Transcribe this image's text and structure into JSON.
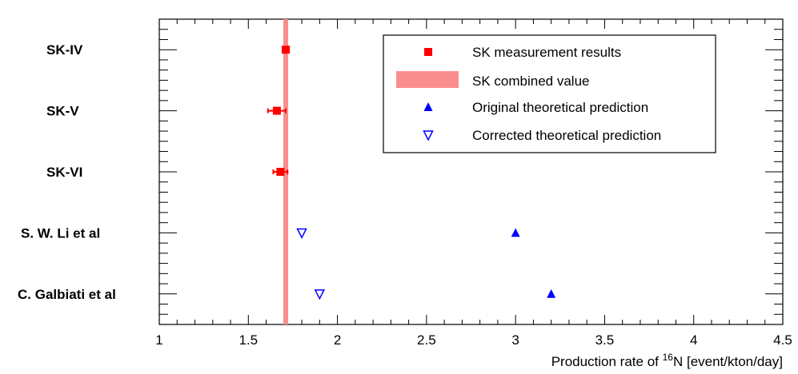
{
  "chart_data": {
    "type": "scatter",
    "title": "",
    "xlabel_prefix": "Production rate of ",
    "xlabel_sup": "16",
    "xlabel_suffix": "N [event/kton/day]",
    "xlim": [
      1,
      4.5
    ],
    "x_ticks": [
      "1",
      "1.5",
      "2",
      "2.5",
      "3",
      "3.5",
      "4",
      "4.5"
    ],
    "x_tick_values": [
      1,
      1.5,
      2,
      2.5,
      3,
      3.5,
      4,
      4.5
    ],
    "categories": [
      "SK-IV",
      "SK-V",
      "SK-VI",
      "S. W. Li et al",
      "C. Galbiati et al"
    ],
    "combined_value": {
      "name": "SK combined value",
      "value": 1.71,
      "band": [
        1.7,
        1.72
      ],
      "color": "#fa8e8e"
    },
    "series": [
      {
        "name": "SK measurement results",
        "marker": "square-filled",
        "color": "#ff0000",
        "points": [
          {
            "category": "SK-IV",
            "x": 1.71,
            "xerr": 0.01
          },
          {
            "category": "SK-V",
            "x": 1.66,
            "xerr": 0.05
          },
          {
            "category": "SK-VI",
            "x": 1.68,
            "xerr": 0.04
          }
        ]
      },
      {
        "name": "Original theoretical prediction",
        "marker": "triangle-up-filled",
        "color": "#0000ff",
        "points": [
          {
            "category": "S. W. Li et al",
            "x": 3.0
          },
          {
            "category": "C. Galbiati et al",
            "x": 3.2
          }
        ]
      },
      {
        "name": "Corrected theoretical prediction",
        "marker": "triangle-down-open",
        "color": "#0000ff",
        "points": [
          {
            "category": "S. W. Li et al",
            "x": 1.8
          },
          {
            "category": "C. Galbiati et al",
            "x": 1.9
          }
        ]
      }
    ],
    "legend": {
      "position": "top-right",
      "entries": [
        "SK measurement results",
        "SK combined value",
        "Original theoretical prediction",
        "Corrected theoretical prediction"
      ]
    }
  }
}
